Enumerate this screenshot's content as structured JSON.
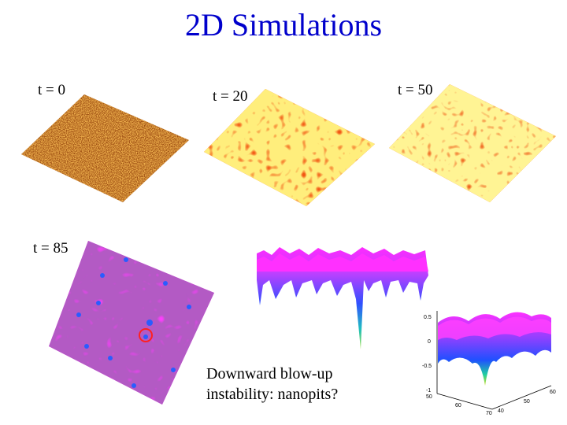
{
  "slide": {
    "title": "2D Simulations",
    "caption_line1": "Downward blow-up",
    "caption_line2": "instability: nanopits?"
  },
  "panels": {
    "t0": {
      "label": "t = 0"
    },
    "t20": {
      "label": "t = 20"
    },
    "t50": {
      "label": "t = 50"
    },
    "t85": {
      "label": "t = 85"
    }
  },
  "surface_plot": {
    "z_ticks": [
      "0.5",
      "0",
      "-0.5",
      "-1"
    ],
    "x_ticks": [
      "50",
      "60",
      "70"
    ],
    "y_ticks": [
      "40",
      "50",
      "60"
    ]
  },
  "colors": {
    "title": "#0000cc",
    "orange_surface": "#ff9a1f",
    "magenta_surface": "#ff33ff",
    "pit_blue": "#2255ff"
  }
}
